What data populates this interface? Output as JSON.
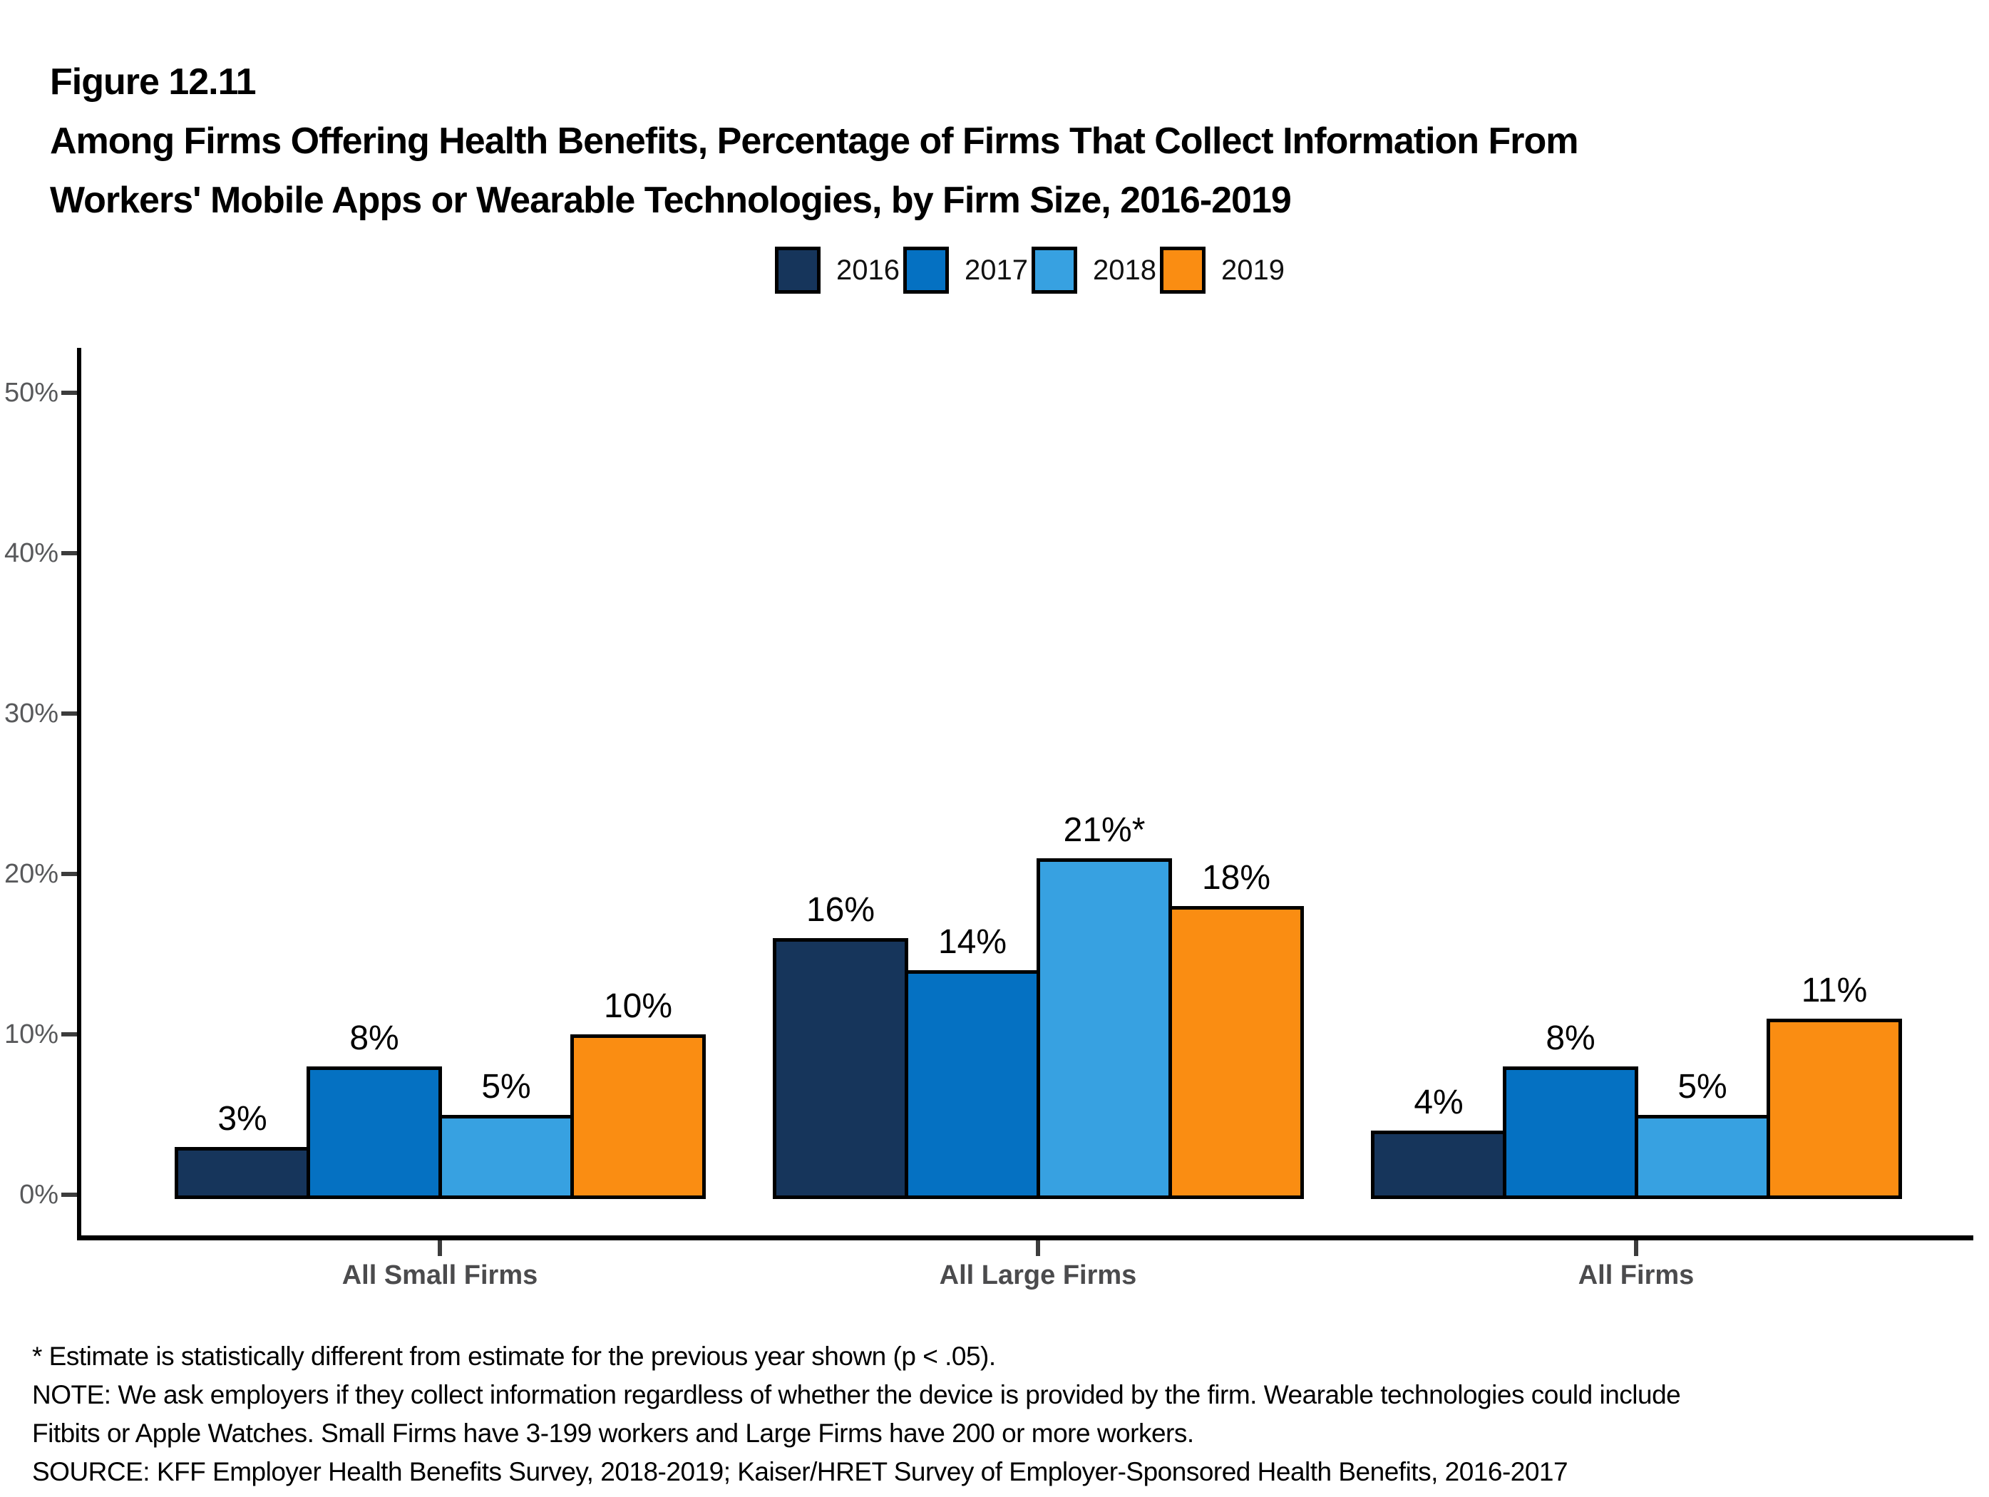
{
  "figure": {
    "number": "Figure 12.11",
    "title_line1": "Among Firms Offering Health Benefits, Percentage of Firms That Collect Information From",
    "title_line2": "Workers' Mobile Apps or Wearable Technologies, by Firm Size, 2016-2019"
  },
  "legend": {
    "items": [
      {
        "label": "2016",
        "color": "#16355B"
      },
      {
        "label": "2017",
        "color": "#0571C2"
      },
      {
        "label": "2018",
        "color": "#37A1E1"
      },
      {
        "label": "2019",
        "color": "#FA8D12"
      }
    ]
  },
  "chart_data": {
    "type": "bar",
    "title": "Among Firms Offering Health Benefits, Percentage of Firms That Collect Information From Workers' Mobile Apps or Wearable Technologies, by Firm Size, 2016-2019",
    "categories": [
      "All Small Firms",
      "All Large Firms",
      "All Firms"
    ],
    "series": [
      {
        "name": "2016",
        "color": "#16355B",
        "values": [
          3,
          16,
          4
        ],
        "labels": [
          "3%",
          "16%",
          "4%"
        ]
      },
      {
        "name": "2017",
        "color": "#0571C2",
        "values": [
          8,
          14,
          8
        ],
        "labels": [
          "8%",
          "14%",
          "8%"
        ]
      },
      {
        "name": "2018",
        "color": "#37A1E1",
        "values": [
          5,
          21,
          5
        ],
        "labels": [
          "5%",
          "21%*",
          "5%"
        ]
      },
      {
        "name": "2019",
        "color": "#FA8D12",
        "values": [
          10,
          18,
          11
        ],
        "labels": [
          "10%",
          "18%",
          "11%"
        ]
      }
    ],
    "xlabel": "",
    "ylabel": "",
    "ylim": [
      0,
      50
    ],
    "yticks": [
      0,
      10,
      20,
      30,
      40,
      50
    ],
    "ytick_labels": [
      "0%",
      "10%",
      "20%",
      "30%",
      "40%",
      "50%"
    ],
    "grid": false,
    "legend_position": "top-center"
  },
  "footnotes": {
    "line1": "* Estimate is statistically different from estimate for the previous year shown (p < .05).",
    "line2": "NOTE: We ask employers if they collect information regardless of whether the device is provided by the firm.  Wearable technologies could include",
    "line3": "Fitbits or Apple Watches. Small Firms have 3-199 workers and Large Firms have 200 or more workers.",
    "line4": "SOURCE: KFF Employer Health Benefits Survey, 2018-2019; Kaiser/HRET Survey of Employer-Sponsored Health Benefits, 2016-2017"
  }
}
